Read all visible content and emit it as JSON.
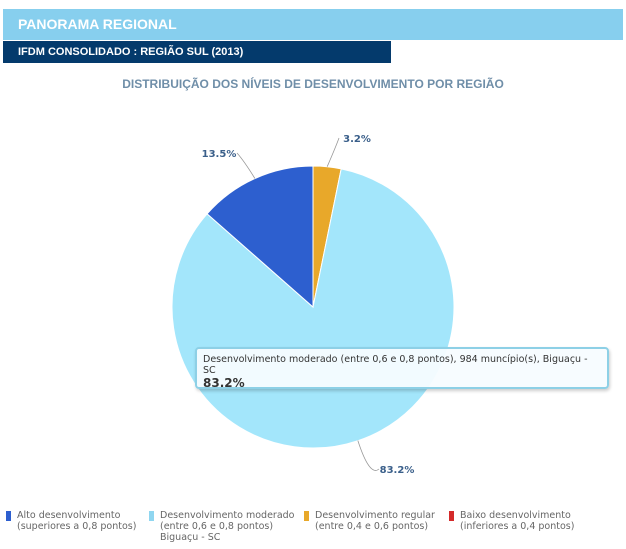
{
  "header": {
    "title": "PANORAMA REGIONAL",
    "subtitle": "IFDM CONSOLIDADO : REGIÃO SUL (2013)"
  },
  "chart_data": {
    "type": "pie",
    "title": "DISTRIBUIÇÃO DOS NÍVEIS DE DESENVOLVIMENTO POR REGIÃO",
    "slices": [
      {
        "name": "Desenvolvimento regular",
        "value": 3.2,
        "label": "3.2%",
        "color": "#e8a82a"
      },
      {
        "name": "Desenvolvimento moderado",
        "value": 83.2,
        "label": "83.2%",
        "color": "#a3e6fb"
      },
      {
        "name": "Alto desenvolvimento",
        "value": 13.5,
        "label": "13.5%",
        "color": "#2d5fcf"
      }
    ],
    "legend_position": "bottom",
    "legend": [
      {
        "line1": "Alto desenvolvimento",
        "line2": "(superiores a 0,8 pontos)",
        "line3": "",
        "color": "#2d5fcf"
      },
      {
        "line1": "Desenvolvimento moderado",
        "line2": "(entre 0,6 e 0,8 pontos)",
        "line3": "Biguaçu - SC",
        "color": "#8fd6f0"
      },
      {
        "line1": "Desenvolvimento regular",
        "line2": "(entre 0,4 e 0,6 pontos)",
        "line3": "",
        "color": "#e8a82a"
      },
      {
        "line1": "Baixo desenvolvimento",
        "line2": "(inferiores a 0,4 pontos)",
        "line3": "",
        "color": "#d42a2a"
      }
    ],
    "tooltip": {
      "text": "Desenvolvimento moderado (entre 0,6 e 0,8 pontos), 984 muncípio(s), Biguaçu - SC",
      "value": "83.2%"
    }
  }
}
